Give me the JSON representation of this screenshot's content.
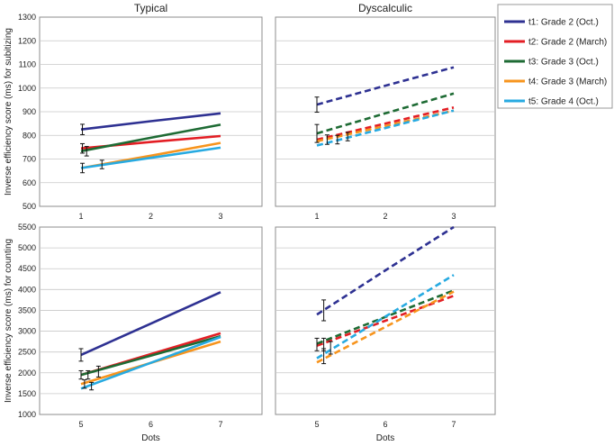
{
  "chart_data": {
    "type": "line",
    "panels": [
      {
        "id": "typical-subitizing",
        "title": "Typical",
        "x": [
          1,
          2,
          3
        ],
        "ylim": [
          500,
          1300
        ],
        "yticks": [
          500,
          600,
          700,
          800,
          900,
          1000,
          1100,
          1200,
          1300
        ],
        "ylabel": "Inverse efficiency score (ms) for subitizing",
        "xlabel": "",
        "style": "solid",
        "series": [
          {
            "name": "t1: Grade 2 (Oct.)",
            "values": [
              825,
              860,
              893
            ],
            "errors": [
              {
                "x": 1.02,
                "y": 825,
                "err": 22
              }
            ]
          },
          {
            "name": "t2: Grade 2 (March)",
            "values": [
              745,
              772,
              797
            ],
            "errors": [
              {
                "x": 1.02,
                "y": 745,
                "err": 20
              }
            ]
          },
          {
            "name": "t3: Grade 3 (Oct.)",
            "values": [
              733,
              790,
              845
            ],
            "errors": [
              {
                "x": 1.08,
                "y": 733,
                "err": 20
              }
            ]
          },
          {
            "name": "t4: Grade 3 (March)",
            "values": [
              662,
              714,
              768
            ],
            "errors": [
              {
                "x": 1.02,
                "y": 662,
                "err": 20
              },
              {
                "x": 1.3,
                "y": 677,
                "err": 18
              }
            ]
          },
          {
            "name": "t5: Grade 4 (Oct.)",
            "values": [
              662,
              705,
              748
            ],
            "errors": []
          }
        ]
      },
      {
        "id": "dyscalculic-subitizing",
        "title": "Dyscalculic",
        "x": [
          1,
          2,
          3
        ],
        "ylim": [
          500,
          1300
        ],
        "yticks": [
          500,
          600,
          700,
          800,
          900,
          1000,
          1100,
          1200,
          1300
        ],
        "ylabel": "",
        "xlabel": "",
        "style": "dashed",
        "series": [
          {
            "name": "t1: Grade 2 (Oct.)",
            "values": [
              930,
              1010,
              1088
            ],
            "errors": [
              {
                "x": 1.0,
                "y": 930,
                "err": 32
              }
            ]
          },
          {
            "name": "t2: Grade 2 (March)",
            "values": [
              782,
              850,
              918
            ],
            "errors": [
              {
                "x": 1.15,
                "y": 782,
                "err": 20
              }
            ]
          },
          {
            "name": "t3: Grade 3 (Oct.)",
            "values": [
              808,
              893,
              977
            ],
            "errors": [
              {
                "x": 1.0,
                "y": 808,
                "err": 38
              }
            ]
          },
          {
            "name": "t4: Grade 3 (March)",
            "values": [
              775,
              840,
              905
            ],
            "errors": [
              {
                "x": 1.3,
                "y": 782,
                "err": 18
              }
            ]
          },
          {
            "name": "t5: Grade 4 (Oct.)",
            "values": [
              757,
              831,
              905
            ],
            "errors": [
              {
                "x": 1.45,
                "y": 795,
                "err": 18
              }
            ]
          }
        ]
      },
      {
        "id": "typical-counting",
        "title": "",
        "x": [
          5,
          6,
          7
        ],
        "ylim": [
          1000,
          5500
        ],
        "yticks": [
          1000,
          1500,
          2000,
          2500,
          3000,
          3500,
          4000,
          4500,
          5000,
          5500
        ],
        "ylabel": "Inverse efficiency score (ms) for counting",
        "xlabel": "Dots",
        "style": "solid",
        "series": [
          {
            "name": "t1: Grade 2 (Oct.)",
            "values": [
              2430,
              3180,
              3935
            ],
            "errors": [
              {
                "x": 5.0,
                "y": 2430,
                "err": 150
              }
            ]
          },
          {
            "name": "t2: Grade 2 (March)",
            "values": [
              1950,
              2450,
              2950
            ],
            "errors": [
              {
                "x": 5.1,
                "y": 1950,
                "err": 100
              }
            ]
          },
          {
            "name": "t3: Grade 3 (Oct.)",
            "values": [
              1950,
              2410,
              2880
            ],
            "errors": [
              {
                "x": 5.0,
                "y": 1950,
                "err": 100
              },
              {
                "x": 5.25,
                "y": 2030,
                "err": 130
              }
            ]
          },
          {
            "name": "t4: Grade 3 (March)",
            "values": [
              1730,
              2240,
              2750
            ],
            "errors": [
              {
                "x": 5.05,
                "y": 1730,
                "err": 100
              }
            ]
          },
          {
            "name": "t5: Grade 4 (Oct.)",
            "values": [
              1620,
              2240,
              2860
            ],
            "errors": [
              {
                "x": 5.15,
                "y": 1680,
                "err": 90
              }
            ]
          }
        ]
      },
      {
        "id": "dyscalculic-counting",
        "title": "",
        "x": [
          5,
          6,
          7
        ],
        "ylim": [
          1000,
          5500
        ],
        "yticks": [
          1000,
          1500,
          2000,
          2500,
          3000,
          3500,
          4000,
          4500,
          5000,
          5500
        ],
        "ylabel": "",
        "xlabel": "Dots",
        "style": "dashed",
        "series": [
          {
            "name": "t1: Grade 2 (Oct.)",
            "values": [
              3400,
              4460,
              5500
            ],
            "errors": [
              {
                "x": 5.1,
                "y": 3500,
                "err": 250
              }
            ]
          },
          {
            "name": "t2: Grade 2 (March)",
            "values": [
              2650,
              3250,
              3850
            ],
            "errors": [
              {
                "x": 5.0,
                "y": 2680,
                "err": 150
              }
            ]
          },
          {
            "name": "t3: Grade 3 (Oct.)",
            "values": [
              2700,
              3340,
              3980
            ],
            "errors": [
              {
                "x": 5.1,
                "y": 2680,
                "err": 150
              }
            ]
          },
          {
            "name": "t4: Grade 3 (March)",
            "values": [
              2250,
              3100,
              3950
            ],
            "errors": [
              {
                "x": 5.1,
                "y": 2400,
                "err": 180
              }
            ]
          },
          {
            "name": "t5: Grade 4 (Oct.)",
            "values": [
              2350,
              3350,
              4350
            ],
            "errors": [
              {
                "x": 5.2,
                "y": 2600,
                "err": 150
              }
            ]
          }
        ]
      }
    ],
    "legend": {
      "position": "right",
      "entries": [
        {
          "name": "t1: Grade 2 (Oct.)",
          "color": "#2e3192"
        },
        {
          "name": "t2: Grade 2 (March)",
          "color": "#e31e24"
        },
        {
          "name": "t3: Grade 3 (Oct.)",
          "color": "#1e6b34"
        },
        {
          "name": "t4: Grade 3 (March)",
          "color": "#f7941d"
        },
        {
          "name": "t5: Grade 4 (Oct.)",
          "color": "#27aae1"
        }
      ]
    },
    "grid": true
  }
}
